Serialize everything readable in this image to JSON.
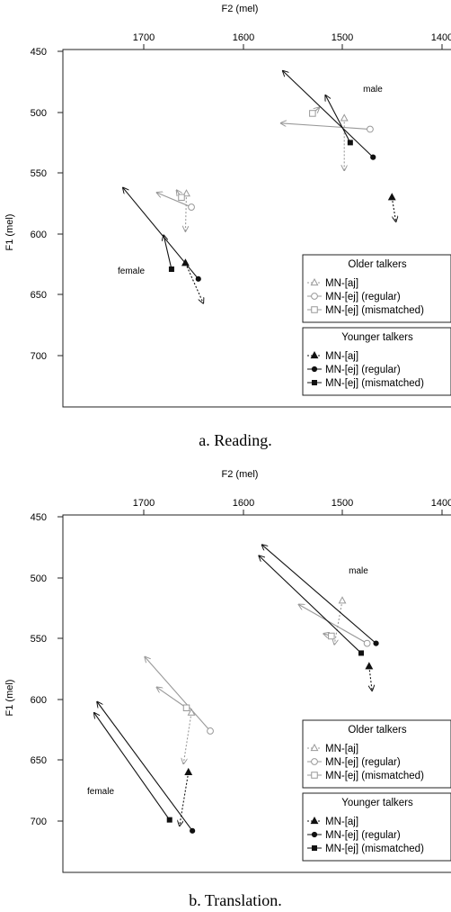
{
  "chart_data": [
    {
      "type": "line",
      "caption": "a. Reading.",
      "xlabel": "F2 (mel)",
      "ylabel": "F1 (mel)",
      "x_ticks": [
        "1700",
        "1600",
        "1500",
        "1400"
      ],
      "y_ticks": [
        "450",
        "500",
        "550",
        "600",
        "650",
        "700"
      ],
      "xlim": [
        1790,
        1395
      ],
      "ylim": [
        445,
        741
      ],
      "x_reversed": true,
      "annotations": [
        {
          "text": "male",
          "x": 1480,
          "y": 497
        },
        {
          "text": "female",
          "x": 1727,
          "y": 631
        }
      ],
      "legend": [
        {
          "title": "Older talkers",
          "items": [
            "MN-[aj]",
            "MN-[ej] (regular)",
            "MN-[ej] (mismatched)"
          ]
        },
        {
          "title": "Younger talkers",
          "items": [
            "MN-[aj]",
            "MN-[ej] (regular)",
            "MN-[ej] (mismatched)"
          ]
        }
      ],
      "series": [
        {
          "group": "Older",
          "vowel": "MN-[aj]",
          "speaker": "female",
          "start": [
            1657,
            567
          ],
          "end": [
            1658,
            598
          ]
        },
        {
          "group": "Older",
          "vowel": "MN-[ej] (regular)",
          "speaker": "female",
          "start": [
            1652,
            578
          ],
          "end": [
            1687,
            566
          ]
        },
        {
          "group": "Older",
          "vowel": "MN-[ej] (mismatched)",
          "speaker": "female",
          "start": [
            1662,
            570
          ],
          "end": [
            1667,
            564
          ]
        },
        {
          "group": "Older",
          "vowel": "MN-[aj]",
          "speaker": "male",
          "start": [
            1498,
            505
          ],
          "end": [
            1498,
            548
          ]
        },
        {
          "group": "Older",
          "vowel": "MN-[ej] (regular)",
          "speaker": "male",
          "start": [
            1472,
            514
          ],
          "end": [
            1562,
            509
          ]
        },
        {
          "group": "Older",
          "vowel": "MN-[ej] (mismatched)",
          "speaker": "male",
          "start": [
            1530,
            501
          ],
          "end": [
            1523,
            496
          ]
        },
        {
          "group": "Younger",
          "vowel": "MN-[aj]",
          "speaker": "female",
          "start": [
            1658,
            624
          ],
          "end": [
            1640,
            657
          ]
        },
        {
          "group": "Younger",
          "vowel": "MN-[ej] (regular)",
          "speaker": "female",
          "start": [
            1645,
            637
          ],
          "end": [
            1721,
            562
          ]
        },
        {
          "group": "Younger",
          "vowel": "MN-[ej] (mismatched)",
          "speaker": "female",
          "start": [
            1672,
            629
          ],
          "end": [
            1680,
            601
          ]
        },
        {
          "group": "Younger",
          "vowel": "MN-[aj]",
          "speaker": "male",
          "start": [
            1450,
            570
          ],
          "end": [
            1446,
            590
          ]
        },
        {
          "group": "Younger",
          "vowel": "MN-[ej] (regular)",
          "speaker": "male",
          "start": [
            1469,
            537
          ],
          "end": [
            1560,
            466
          ]
        },
        {
          "group": "Younger",
          "vowel": "MN-[ej] (mismatched)",
          "speaker": "male",
          "start": [
            1492,
            525
          ],
          "end": [
            1517,
            486
          ]
        }
      ]
    },
    {
      "type": "line",
      "caption": "b. Translation.",
      "xlabel": "F2 (mel)",
      "ylabel": "F1 (mel)",
      "x_ticks": [
        "1700",
        "1600",
        "1500",
        "1400"
      ],
      "y_ticks": [
        "450",
        "500",
        "550",
        "600",
        "650",
        "700"
      ],
      "xlim": [
        1790,
        1395
      ],
      "ylim": [
        445,
        741
      ],
      "x_reversed": true,
      "annotations": [
        {
          "text": "male",
          "x": 1494,
          "y": 640
        },
        {
          "text": "female",
          "x": 1741,
          "y": 676
        }
      ],
      "legend": [
        {
          "title": "Older talkers",
          "items": [
            "MN-[aj]",
            "MN-[ej] (regular)",
            "MN-[ej] (mismatched)"
          ]
        },
        {
          "title": "Younger talkers",
          "items": [
            "MN-[aj]",
            "MN-[ej] (regular)",
            "MN-[ej] (mismatched)"
          ]
        }
      ],
      "series": [
        {
          "group": "Older",
          "vowel": "MN-[aj]",
          "speaker": "female",
          "start": [
            1652,
            611
          ],
          "end": [
            1660,
            653
          ]
        },
        {
          "group": "Older",
          "vowel": "MN-[ej] (regular)",
          "speaker": "female",
          "start": [
            1633,
            626
          ],
          "end": [
            1699,
            565
          ]
        },
        {
          "group": "Older",
          "vowel": "MN-[ej] (mismatched)",
          "speaker": "female",
          "start": [
            1657,
            607
          ],
          "end": [
            1687,
            590
          ]
        },
        {
          "group": "Older",
          "vowel": "MN-[aj]",
          "speaker": "male",
          "start": [
            1500,
            519
          ],
          "end": [
            1508,
            555
          ]
        },
        {
          "group": "Older",
          "vowel": "MN-[ej] (regular)",
          "speaker": "male",
          "start": [
            1475,
            554
          ],
          "end": [
            1544,
            522
          ]
        },
        {
          "group": "Older",
          "vowel": "MN-[ej] (mismatched)",
          "speaker": "male",
          "start": [
            1511,
            548
          ],
          "end": [
            1519,
            546
          ]
        },
        {
          "group": "Younger",
          "vowel": "MN-[aj]",
          "speaker": "female",
          "start": [
            1655,
            660
          ],
          "end": [
            1664,
            704
          ]
        },
        {
          "group": "Younger",
          "vowel": "MN-[ej] (regular)",
          "speaker": "female",
          "start": [
            1651,
            708
          ],
          "end": [
            1747,
            602
          ]
        },
        {
          "group": "Younger",
          "vowel": "MN-[ej] (mismatched)",
          "speaker": "female",
          "start": [
            1674,
            699
          ],
          "end": [
            1750,
            611
          ]
        },
        {
          "group": "Younger",
          "vowel": "MN-[aj]",
          "speaker": "male",
          "start": [
            1473,
            573
          ],
          "end": [
            1470,
            593
          ]
        },
        {
          "group": "Younger",
          "vowel": "MN-[ej] (regular)",
          "speaker": "male",
          "start": [
            1466,
            554
          ],
          "end": [
            1581,
            473
          ]
        },
        {
          "group": "Younger",
          "vowel": "MN-[ej] (mismatched)",
          "speaker": "male",
          "start": [
            1481,
            562
          ],
          "end": [
            1584,
            482
          ]
        }
      ]
    }
  ]
}
